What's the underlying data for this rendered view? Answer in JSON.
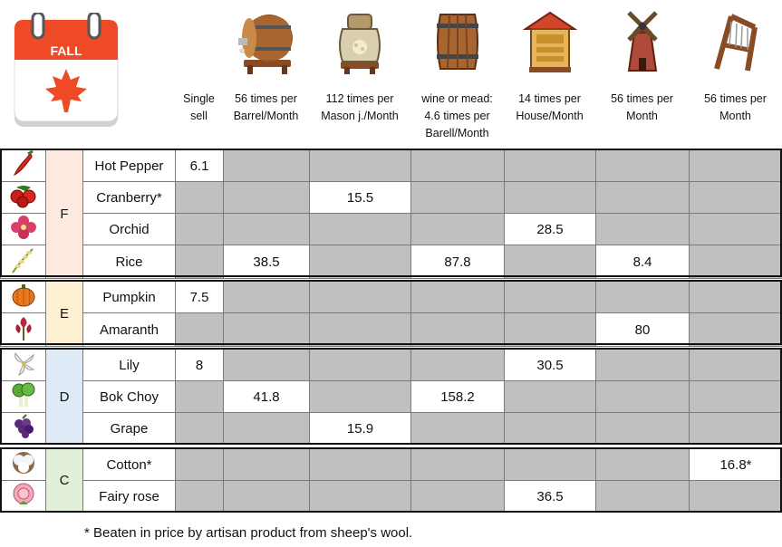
{
  "calendar": {
    "label": "FALL"
  },
  "columns": [
    {
      "icon": "",
      "header": [
        "Single",
        "sell"
      ]
    },
    {
      "icon": "keg-icon",
      "header": [
        "56 times per",
        "Barrel/Month"
      ]
    },
    {
      "icon": "preserves-jar-icon",
      "header": [
        "112 times per",
        "Mason j./Month"
      ]
    },
    {
      "icon": "cask-icon",
      "header": [
        "wine or mead:",
        "4.6 times per",
        "Barell/Month"
      ]
    },
    {
      "icon": "bee-house-icon",
      "header": [
        "14 times per",
        "House/Month"
      ]
    },
    {
      "icon": "mill-icon",
      "header": [
        "56 times per",
        "Month"
      ]
    },
    {
      "icon": "loom-icon",
      "header": [
        "56 times per",
        "Month"
      ]
    }
  ],
  "groups": [
    {
      "grade": "F",
      "color": "#fde9e0",
      "rows": [
        {
          "icon": "hot-pepper-icon",
          "name": "Hot Pepper",
          "values": [
            "6.1",
            "",
            "",
            "",
            "",
            "",
            ""
          ]
        },
        {
          "icon": "cranberry-icon",
          "name": "Cranberry*",
          "values": [
            "",
            "",
            "15.5",
            "",
            "",
            "",
            ""
          ]
        },
        {
          "icon": "orchid-icon",
          "name": "Orchid",
          "values": [
            "",
            "",
            "",
            "",
            "28.5",
            "",
            ""
          ]
        },
        {
          "icon": "rice-icon",
          "name": "Rice",
          "values": [
            "",
            "38.5",
            "",
            "87.8",
            "",
            "8.4",
            ""
          ]
        }
      ]
    },
    {
      "grade": "E",
      "color": "#fdf0d2",
      "rows": [
        {
          "icon": "pumpkin-icon",
          "name": "Pumpkin",
          "values": [
            "7.5",
            "",
            "",
            "",
            "",
            "",
            ""
          ]
        },
        {
          "icon": "amaranth-icon",
          "name": "Amaranth",
          "values": [
            "",
            "",
            "",
            "",
            "",
            "80",
            ""
          ]
        }
      ]
    },
    {
      "grade": "D",
      "color": "#deebf6",
      "rows": [
        {
          "icon": "lily-icon",
          "name": "Lily",
          "values": [
            "8",
            "",
            "",
            "",
            "30.5",
            "",
            ""
          ]
        },
        {
          "icon": "bok-choy-icon",
          "name": "Bok Choy",
          "values": [
            "",
            "41.8",
            "",
            "158.2",
            "",
            "",
            ""
          ]
        },
        {
          "icon": "grape-icon",
          "name": "Grape",
          "values": [
            "",
            "",
            "15.9",
            "",
            "",
            "",
            ""
          ]
        }
      ]
    },
    {
      "grade": "C",
      "color": "#e2efd9",
      "rows": [
        {
          "icon": "cotton-icon",
          "name": "Cotton*",
          "values": [
            "",
            "",
            "",
            "",
            "",
            "",
            "16.8*"
          ]
        },
        {
          "icon": "fairy-rose-icon",
          "name": "Fairy rose",
          "values": [
            "",
            "",
            "",
            "",
            "36.5",
            "",
            ""
          ]
        }
      ]
    }
  ],
  "footnote": "* Beaten in price by artisan product from sheep's wool."
}
